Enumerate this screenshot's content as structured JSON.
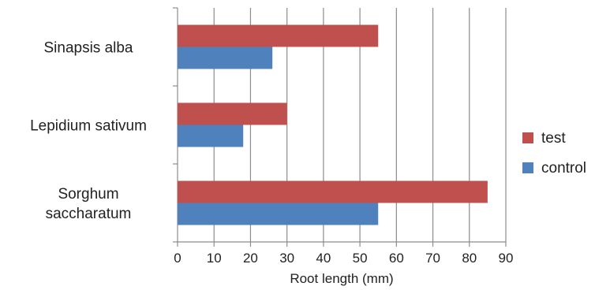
{
  "chart_data": {
    "type": "bar",
    "orientation": "horizontal",
    "categories": [
      "Sinapsis alba",
      "Lepidium sativum",
      "Sorghum saccharatum"
    ],
    "category_lines": [
      [
        "Sinapsis alba"
      ],
      [
        "Lepidium sativum"
      ],
      [
        "Sorghum",
        "saccharatum"
      ]
    ],
    "series": [
      {
        "name": "test",
        "values": [
          55,
          30,
          85
        ],
        "color": "#c0504d"
      },
      {
        "name": "control",
        "values": [
          26,
          18,
          55
        ],
        "color": "#4f81bd"
      }
    ],
    "xlabel": "Root length (mm)",
    "xlim": [
      0,
      90
    ],
    "xticks": [
      0,
      10,
      20,
      30,
      40,
      50,
      60,
      70,
      80,
      90
    ],
    "grid": true,
    "legend_position": "right"
  }
}
